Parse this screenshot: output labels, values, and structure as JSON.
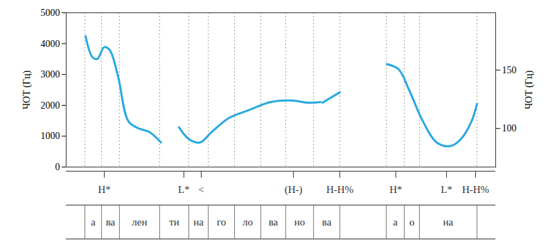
{
  "chart_data": {
    "type": "line",
    "y_label": "ЧОТ (Гц)",
    "y2_label": "ЧОТ (Гц)",
    "xlim": [
      0,
      2.5
    ],
    "ylim": [
      0,
      5000
    ],
    "yticks": [
      0,
      1000,
      2000,
      3000,
      4000,
      5000
    ],
    "y2lim": [
      67,
      199
    ],
    "y2ticks": [
      100,
      150
    ],
    "tick_labels": "y",
    "series": [
      {
        "color": "#29a9e0",
        "axis": "y2",
        "x": [
          0.113,
          0.153,
          0.181,
          0.222,
          0.254,
          0.302,
          0.363,
          0.423,
          0.484,
          0.552,
          0.6,
          0.657,
          0.714,
          0.778,
          0.847,
          0.948,
          1.069,
          1.19,
          1.31,
          1.411,
          1.48,
          1.486,
          1.492,
          1.593,
          1.7,
          1.867,
          1.935,
          1.996,
          2.077,
          2.157,
          2.238,
          2.298,
          2.359,
          2.391
        ],
        "values": [
          179,
          161,
          159.5,
          169.6,
          167,
          144.6,
          106,
          100,
          97,
          88,
          null,
          101,
          91,
          88,
          97,
          109,
          116,
          122.6,
          124,
          122,
          122.6,
          null,
          122,
          131,
          null,
          155,
          150.6,
          133,
          106,
          88,
          85,
          91,
          106,
          121
        ]
      }
    ],
    "tones": [
      {
        "x": 0.222,
        "label": "H*"
      },
      {
        "x": 0.685,
        "label": "L*"
      },
      {
        "x": 0.786,
        "label": "<"
      },
      {
        "x": 1.323,
        "label": "(H-)"
      },
      {
        "x": 1.593,
        "label": "H-H%"
      },
      {
        "x": 1.919,
        "label": "H*"
      },
      {
        "x": 2.214,
        "label": "L*"
      },
      {
        "x": 2.383,
        "label": "H-H%"
      }
    ],
    "syllables": [
      {
        "start": 0.109,
        "end": 0.206,
        "label": "а"
      },
      {
        "start": 0.206,
        "end": 0.31,
        "label": "ва"
      },
      {
        "start": 0.31,
        "end": 0.544,
        "label": "лен"
      },
      {
        "start": 0.544,
        "end": 0.714,
        "label": "ти"
      },
      {
        "start": 0.714,
        "end": 0.827,
        "label": "на"
      },
      {
        "start": 0.827,
        "end": 0.98,
        "label": "го"
      },
      {
        "start": 0.98,
        "end": 1.133,
        "label": "ло"
      },
      {
        "start": 1.133,
        "end": 1.278,
        "label": "ва"
      },
      {
        "start": 1.278,
        "end": 1.44,
        "label": "но"
      },
      {
        "start": 1.44,
        "end": 1.593,
        "label": "ва"
      },
      {
        "start": 1.863,
        "end": 1.968,
        "label": "а"
      },
      {
        "start": 1.968,
        "end": 2.056,
        "label": "о"
      },
      {
        "start": 2.056,
        "end": 2.391,
        "label": "на"
      }
    ]
  }
}
